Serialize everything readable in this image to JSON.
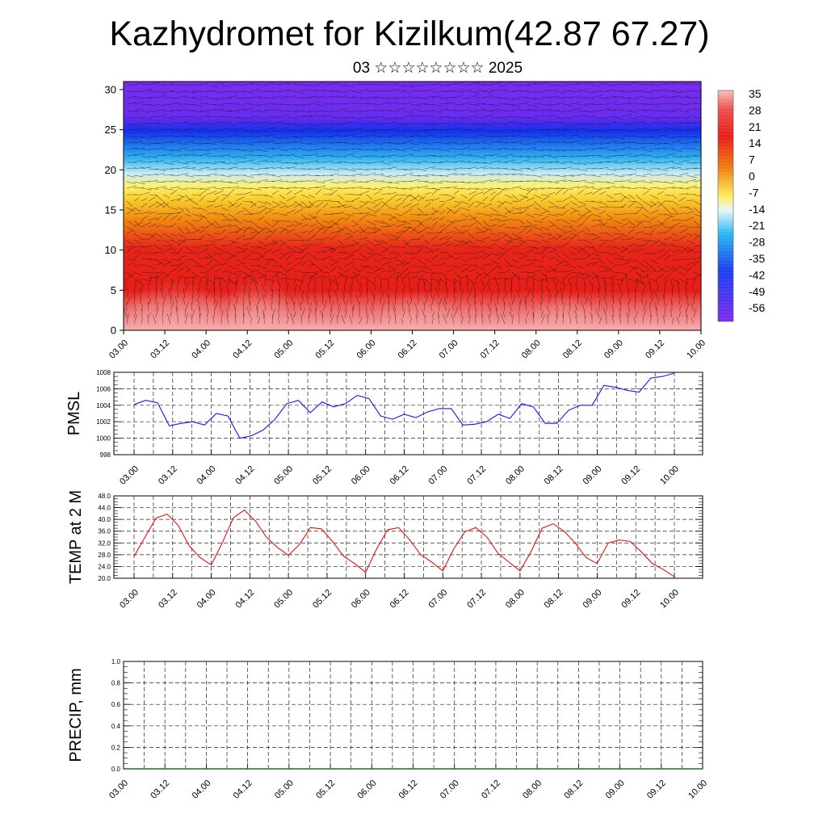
{
  "header": {
    "title": "Kazhydromet for Kizilkum(42.87 67.27)",
    "subtitle": "03 ☆☆☆☆☆☆☆☆ 2025"
  },
  "time_ticks": [
    "03.00",
    "03.12",
    "04.00",
    "04.12",
    "05.00",
    "05.12",
    "06.00",
    "06.12",
    "07.00",
    "07.12",
    "08.00",
    "08.12",
    "09.00",
    "09.12",
    "10.00"
  ],
  "chart_data": [
    {
      "type": "heatmap",
      "xlabel": "",
      "ylabel": "",
      "x": [
        "03.00",
        "03.12",
        "04.00",
        "04.12",
        "05.00",
        "05.12",
        "06.00",
        "06.12",
        "07.00",
        "07.12",
        "08.00",
        "08.12",
        "09.00",
        "09.12",
        "10.00"
      ],
      "ylim": [
        0,
        31
      ],
      "y_ticks": [
        0,
        5,
        10,
        15,
        20,
        25,
        30
      ],
      "colorbar_labels": [
        35,
        28,
        21,
        14,
        7,
        0,
        -7,
        -14,
        -21,
        -28,
        -35,
        -42,
        -49,
        -56
      ],
      "colors": {
        "warm_max": "#f8b4b4",
        "hot": "#e8201a",
        "mid": "#f39a10",
        "zero": "#ffee60",
        "cool": "#29b8f0",
        "cold": "#1030f0",
        "coldest": "#7c2cf0"
      },
      "overlay": "wind vectors"
    },
    {
      "type": "line",
      "ylabel": "PMSL",
      "ylim": [
        998,
        1008
      ],
      "y_ticks": [
        998,
        1000,
        1002,
        1004,
        1006,
        1008
      ],
      "series": [
        {
          "color": "#1414ff",
          "values": [
            1004.1,
            1004.6,
            1004.3,
            1001.5,
            1001.8,
            1002.0,
            1001.6,
            1003.0,
            1002.7,
            1000.0,
            1000.3,
            1001.0,
            1002.3,
            1004.2,
            1004.6,
            1003.1,
            1004.4,
            1003.8,
            1004.2,
            1005.2,
            1004.8,
            1002.7,
            1002.3,
            1002.9,
            1002.5,
            1003.2,
            1003.6,
            1003.6,
            1001.6,
            1001.7,
            1002.0,
            1002.9,
            1002.4,
            1004.2,
            1003.8,
            1001.8,
            1001.8,
            1003.4,
            1004.0,
            1004.0,
            1006.4,
            1006.2,
            1005.8,
            1005.6,
            1007.3,
            1007.5,
            1007.9
          ]
        }
      ]
    },
    {
      "type": "line",
      "ylabel": "TEMP at 2 M",
      "ylim": [
        20,
        48
      ],
      "y_ticks": [
        "20.0",
        "24.0",
        "28.0",
        "32.0",
        "36.0",
        "40.0",
        "44.0",
        "48.0"
      ],
      "series": [
        {
          "color": "#e81010",
          "values": [
            27.5,
            34.0,
            40.5,
            41.8,
            38.0,
            31.0,
            27.0,
            24.5,
            32.0,
            40.5,
            43.2,
            39.5,
            34.0,
            30.5,
            27.8,
            31.5,
            37.2,
            36.8,
            32.5,
            27.5,
            25.0,
            22.0,
            30.0,
            36.5,
            37.2,
            33.0,
            28.0,
            25.5,
            22.5,
            30.0,
            35.8,
            37.2,
            34.0,
            28.5,
            25.5,
            22.5,
            29.0,
            37.0,
            38.5,
            36.0,
            32.0,
            27.0,
            25.0,
            32.0,
            33.0,
            32.5,
            29.0,
            25.0,
            23.0,
            20.5
          ]
        }
      ]
    },
    {
      "type": "bar",
      "ylabel": "PRECIP, mm",
      "ylim": [
        0,
        1
      ],
      "y_ticks": [
        "0.0",
        "0.2",
        "0.4",
        "0.6",
        "0.8",
        "1.0"
      ],
      "series": [
        {
          "color": "#1e6e28",
          "values": [
            0,
            0,
            0,
            0,
            0,
            0,
            0,
            0,
            0,
            0,
            0,
            0,
            0,
            0,
            0
          ]
        }
      ]
    }
  ]
}
